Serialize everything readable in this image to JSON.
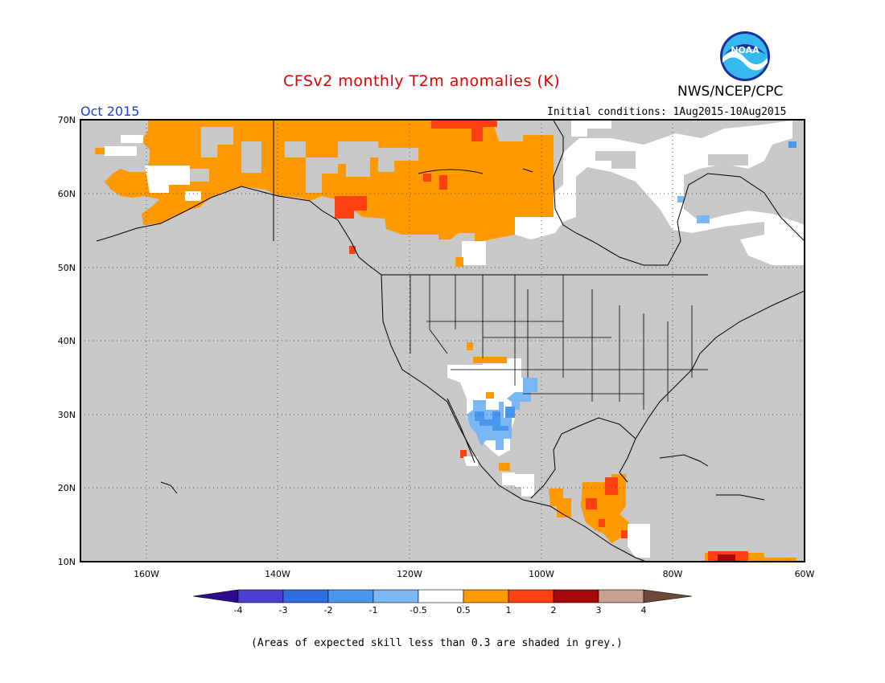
{
  "header": {
    "title": "CFSv2 monthly T2m anomalies (K)",
    "agency": "NWS/NCEP/CPC",
    "logo_text": "NOAA",
    "month": "Oct 2015",
    "initial_conditions": "Initial conditions: 1Aug2015-10Aug2015"
  },
  "map": {
    "lat_labels": [
      "70N",
      "60N",
      "50N",
      "40N",
      "30N",
      "20N",
      "10N"
    ],
    "lon_labels": [
      "160W",
      "140W",
      "120W",
      "100W",
      "80W",
      "60W"
    ],
    "lat_range": [
      10,
      70
    ],
    "lon_range": [
      -170,
      -60
    ],
    "grid": "dotted",
    "background_meaning": "grey = skill less than 0.3"
  },
  "legend": {
    "ticks": [
      "-4",
      "-3",
      "-2",
      "-1",
      "-0.5",
      "0.5",
      "1",
      "2",
      "3",
      "4"
    ],
    "colors": {
      "lt_-4": "#2e0a8c",
      "-4_-3": "#4b3fd0",
      "-3_-2": "#2f6ee0",
      "-2_-1": "#4a97f0",
      "-1_-0.5": "#7ab8f5",
      "-0.5_0.5": "#ffffff",
      "0.5_1": "#ff9900",
      "1_2": "#ff4010",
      "2_3": "#a80808",
      "3_4": "#c8a090",
      "gt_4": "#6e4838"
    },
    "map_background": "#c8c8c8"
  },
  "footnote": "(Areas of expected skill less than 0.3 are shaded in grey.)"
}
